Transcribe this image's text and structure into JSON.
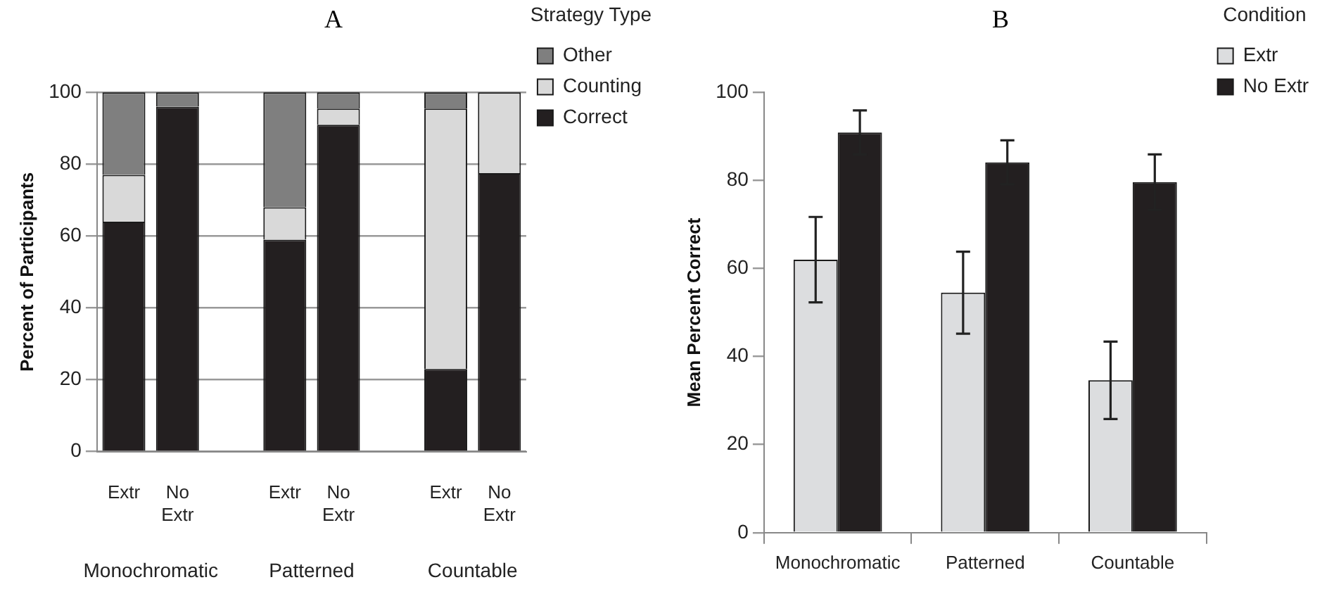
{
  "chart_data": [
    {
      "type": "bar",
      "title": "A",
      "ylabel": "Percent of Participants",
      "legend_title": "Strategy Type",
      "stacked": true,
      "categories": [
        "Extr",
        "No Extr",
        null,
        "Extr",
        "No Extr",
        null,
        "Extr",
        "No Extr"
      ],
      "series": [
        {
          "name": "Correct",
          "color": "#231f20",
          "values": [
            64,
            96,
            null,
            59,
            91,
            null,
            23,
            77.5
          ]
        },
        {
          "name": "Counting",
          "color": "#d9d9d9",
          "values": [
            13,
            0,
            null,
            9,
            4.5,
            null,
            72.5,
            22.5
          ]
        },
        {
          "name": "Other",
          "color": "#7f7f7f",
          "values": [
            23,
            4,
            null,
            32,
            4.5,
            null,
            4.5,
            0
          ]
        }
      ],
      "ylim": [
        0,
        100
      ],
      "yticks": [
        0,
        20,
        40,
        60,
        80,
        100
      ],
      "grid": "y",
      "legend": "top right",
      "annotations": [
        "Monochromatic",
        "Patterned",
        "Countable"
      ]
    },
    {
      "type": "bar",
      "title": "B",
      "ylabel": "Mean Percent Correct",
      "legend_title": "Condition",
      "categories": [
        "Monochromatic",
        "Patterned",
        "Countable"
      ],
      "series": [
        {
          "name": "Extr",
          "color": "#dcdddf",
          "values": [
            62,
            54.5,
            34.6
          ],
          "errors": [
            9.7,
            9.3,
            8.8
          ]
        },
        {
          "name": "No Extr",
          "color": "#231f20",
          "values": [
            90.9,
            84.1,
            79.6
          ],
          "errors": [
            5,
            5,
            6.3
          ]
        }
      ],
      "ylim": [
        0,
        100
      ],
      "yticks": [
        0,
        20,
        40,
        60,
        80,
        100
      ],
      "grid": false,
      "legend": "top right"
    }
  ]
}
